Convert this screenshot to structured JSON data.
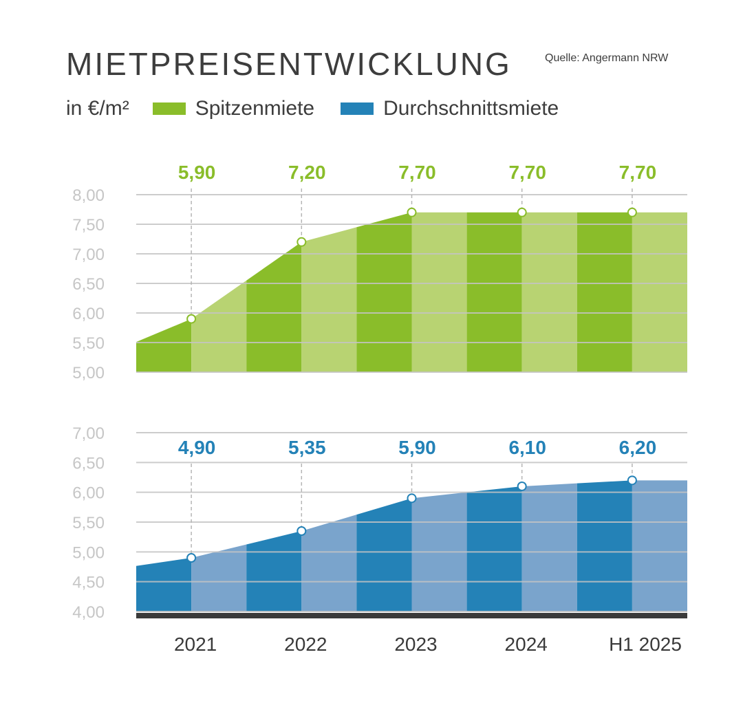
{
  "header": {
    "title": "MIETPREISENTWICKLUNG",
    "source": "Quelle: Angermann NRW",
    "unit": "in €/m²"
  },
  "colors": {
    "green_dark": "#8abd2a",
    "green_light": "#b8d372",
    "blue_dark": "#2482b7",
    "blue_light": "#7aa4cc",
    "grid": "#c4c4c4",
    "baseline": "#3a3a3a"
  },
  "chart_data": [
    {
      "type": "area",
      "series": [
        {
          "name": "Spitzenmiete",
          "values": [
            5.9,
            7.2,
            7.7,
            7.7,
            7.7
          ],
          "labels": [
            "5,90",
            "7,20",
            "7,70",
            "7,70",
            "7,70"
          ]
        }
      ],
      "categories": [
        "2021",
        "2022",
        "2023",
        "2024",
        "H1 2025"
      ],
      "ylim": [
        5.0,
        8.0
      ],
      "yticks": [
        "5,00",
        "5,50",
        "6,00",
        "6,50",
        "7,00",
        "7,50",
        "8,00"
      ],
      "grid": true
    },
    {
      "type": "area",
      "series": [
        {
          "name": "Durchschnittsmiete",
          "values": [
            4.9,
            5.35,
            5.9,
            6.1,
            6.2
          ],
          "labels": [
            "4,90",
            "5,35",
            "5,90",
            "6,10",
            "6,20"
          ]
        }
      ],
      "categories": [
        "2021",
        "2022",
        "2023",
        "2024",
        "H1 2025"
      ],
      "ylim": [
        4.0,
        7.0
      ],
      "yticks": [
        "4,00",
        "4,50",
        "5,00",
        "5,50",
        "6,00",
        "6,50",
        "7,00"
      ],
      "grid": true
    }
  ]
}
